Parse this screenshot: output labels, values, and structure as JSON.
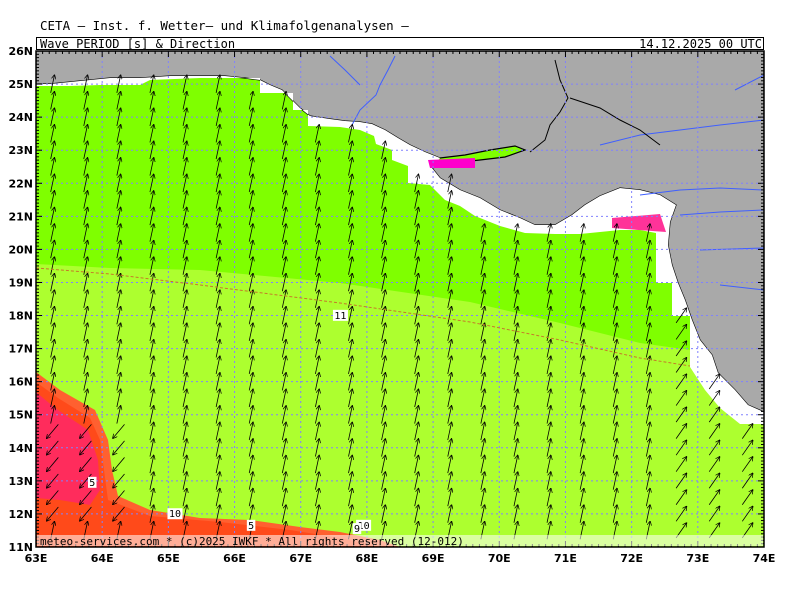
{
  "header": {
    "title": "CETA – Inst. f. Wetter– und Klimafolgenanalysen –",
    "parameter": "Wave_PERIOD_[s]_&_Direction",
    "datetime": "14.12.2025 00 UTC"
  },
  "map": {
    "lon_range": [
      63,
      74
    ],
    "lat_range": [
      11,
      26
    ],
    "lon_labels": [
      "63E",
      "64E",
      "65E",
      "66E",
      "67E",
      "68E",
      "69E",
      "70E",
      "71E",
      "72E",
      "73E",
      "74E"
    ],
    "lat_labels": [
      "11N",
      "12N",
      "13N",
      "14N",
      "15N",
      "16N",
      "17N",
      "18N",
      "19N",
      "20N",
      "21N",
      "22N",
      "23N",
      "24N",
      "25N",
      "26N"
    ],
    "colors": {
      "land": "#a9a9a9",
      "sea_green": "#7fff00",
      "sea_yellowgreen": "#adff2f",
      "period_orange": "#ff4500",
      "period_red": "#ff2a55",
      "period_magenta": "#ff00cc",
      "rivers": "#3f5fff",
      "border": "#000000",
      "gridline": "#8080ff"
    },
    "contour_labels": [
      {
        "text": "11",
        "lon": 67.6,
        "lat": 17.9
      },
      {
        "text": "5",
        "lon": 63.85,
        "lat": 12.85
      },
      {
        "text": "10",
        "lon": 65.1,
        "lat": 11.9
      },
      {
        "text": "5",
        "lon": 66.25,
        "lat": 11.55
      },
      {
        "text": "10",
        "lon": 67.95,
        "lat": 11.55
      },
      {
        "text": "9",
        "lon": 67.85,
        "lat": 11.45
      }
    ],
    "wave_direction_note": "arrows point toward NNE over most of the sea; SW in the south-west swell zone",
    "copyright": "meteo-services.com * (c)2025 IWKF * All rights reserved (12-012)"
  }
}
